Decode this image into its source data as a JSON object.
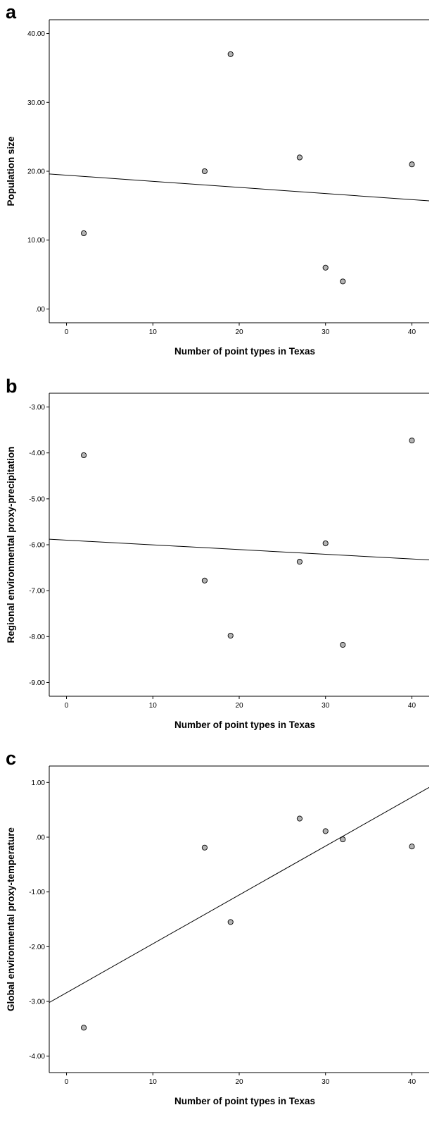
{
  "chart_data": [
    {
      "type": "scatter",
      "panel": "a",
      "xlabel": "Number of point types in Texas",
      "ylabel": "Population size",
      "xlim": [
        -2,
        42
      ],
      "ylim": [
        -2,
        42
      ],
      "xticks": [
        0,
        10,
        20,
        30,
        40
      ],
      "xtick_labels": [
        "0",
        "10",
        "20",
        "30",
        "40"
      ],
      "yticks": [
        0,
        10,
        20,
        30,
        40
      ],
      "ytick_labels": [
        ".00",
        "10.00",
        "20.00",
        "30.00",
        "40.00"
      ],
      "points": [
        {
          "x": 2,
          "y": 11
        },
        {
          "x": 16,
          "y": 20
        },
        {
          "x": 19,
          "y": 37
        },
        {
          "x": 27,
          "y": 22
        },
        {
          "x": 30,
          "y": 6
        },
        {
          "x": 32,
          "y": 4
        },
        {
          "x": 40,
          "y": 21
        }
      ],
      "fit_line": {
        "x": [
          -2,
          42
        ],
        "y": [
          19.6,
          15.7
        ]
      },
      "marker_color": "#b3b3b3",
      "line_color": "#000000"
    },
    {
      "type": "scatter",
      "panel": "b",
      "xlabel": "Number of point types in Texas",
      "ylabel": "Regional environmental proxy-precipitation",
      "xlim": [
        -2,
        42
      ],
      "ylim": [
        -9.3,
        -2.7
      ],
      "xticks": [
        0,
        10,
        20,
        30,
        40
      ],
      "xtick_labels": [
        "0",
        "10",
        "20",
        "30",
        "40"
      ],
      "yticks": [
        -3,
        -4,
        -5,
        -6,
        -7,
        -8,
        -9
      ],
      "ytick_labels": [
        "-3.00",
        "-4.00",
        "-5.00",
        "-6.00",
        "-7.00",
        "-8.00",
        "-9.00"
      ],
      "points": [
        {
          "x": 2,
          "y": -4.05
        },
        {
          "x": 16,
          "y": -6.78
        },
        {
          "x": 19,
          "y": -7.98
        },
        {
          "x": 27,
          "y": -6.37
        },
        {
          "x": 30,
          "y": -5.97
        },
        {
          "x": 32,
          "y": -8.18
        },
        {
          "x": 40,
          "y": -3.73
        }
      ],
      "fit_line": {
        "x": [
          -2,
          42
        ],
        "y": [
          -5.88,
          -6.33
        ]
      },
      "marker_color": "#b3b3b3",
      "line_color": "#000000"
    },
    {
      "type": "scatter",
      "panel": "c",
      "xlabel": "Number of point types in Texas",
      "ylabel": "Global environmental proxy-temperature",
      "xlim": [
        -2,
        42
      ],
      "ylim": [
        -4.3,
        1.3
      ],
      "xticks": [
        0,
        10,
        20,
        30,
        40
      ],
      "xtick_labels": [
        "0",
        "10",
        "20",
        "30",
        "40"
      ],
      "yticks": [
        1,
        0,
        -1,
        -2,
        -3,
        -4
      ],
      "ytick_labels": [
        "1.00",
        ".00",
        "-1.00",
        "-2.00",
        "-3.00",
        "-4.00"
      ],
      "points": [
        {
          "x": 2,
          "y": -3.48
        },
        {
          "x": 16,
          "y": -0.19
        },
        {
          "x": 19,
          "y": -1.55
        },
        {
          "x": 27,
          "y": 0.34
        },
        {
          "x": 30,
          "y": 0.11
        },
        {
          "x": 32,
          "y": -0.04
        },
        {
          "x": 40,
          "y": -0.17
        }
      ],
      "fit_line": {
        "x": [
          -2,
          42
        ],
        "y": [
          -3.02,
          0.91
        ]
      },
      "marker_color": "#b3b3b3",
      "line_color": "#000000"
    }
  ]
}
